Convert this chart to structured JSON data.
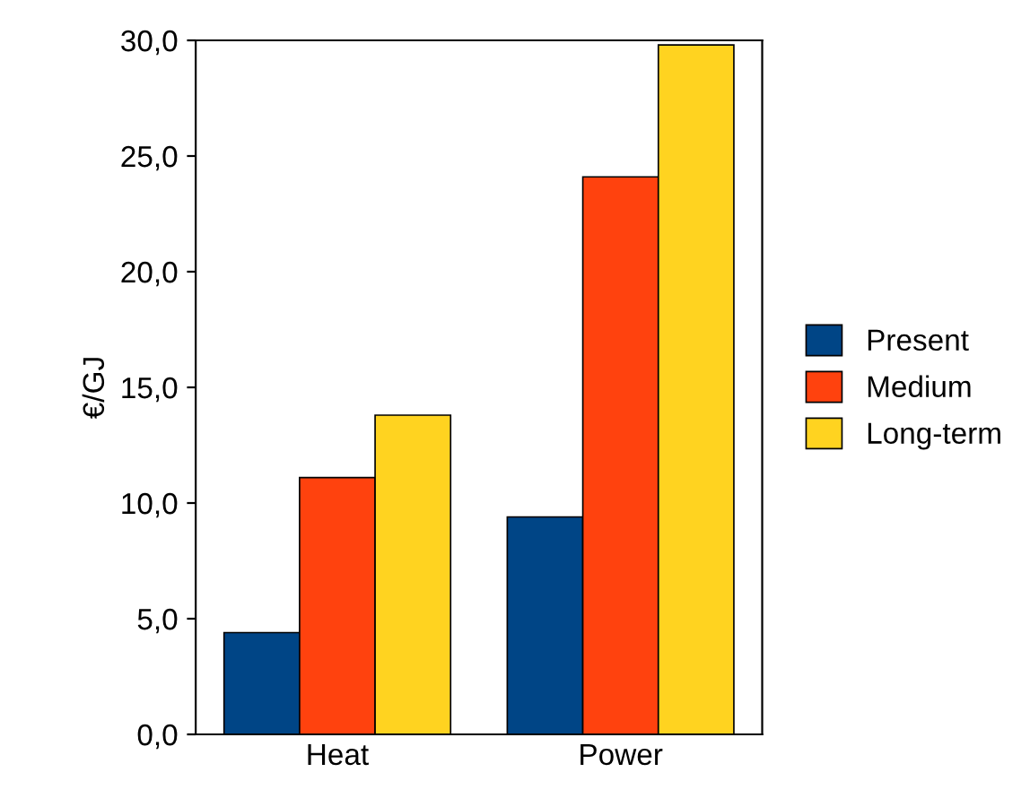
{
  "chart_data": {
    "type": "bar",
    "ylabel": "€/GJ",
    "categories": [
      "Heat",
      "Power"
    ],
    "series": [
      {
        "name": "Present",
        "color": "#004586",
        "values": [
          4.4,
          9.4
        ]
      },
      {
        "name": "Medium",
        "color": "#ff420e",
        "values": [
          11.1,
          24.1
        ]
      },
      {
        "name": "Long-term",
        "color": "#ffd320",
        "values": [
          13.8,
          29.8
        ]
      }
    ],
    "ylim": [
      0,
      30
    ],
    "yticks": [
      {
        "value": 0,
        "label": "0,0"
      },
      {
        "value": 5,
        "label": "5,0"
      },
      {
        "value": 10,
        "label": "10,0"
      },
      {
        "value": 15,
        "label": "15,0"
      },
      {
        "value": 20,
        "label": "20,0"
      },
      {
        "value": 25,
        "label": "25,0"
      },
      {
        "value": 30,
        "label": "30,0"
      }
    ],
    "grid": false,
    "legend": "right"
  }
}
